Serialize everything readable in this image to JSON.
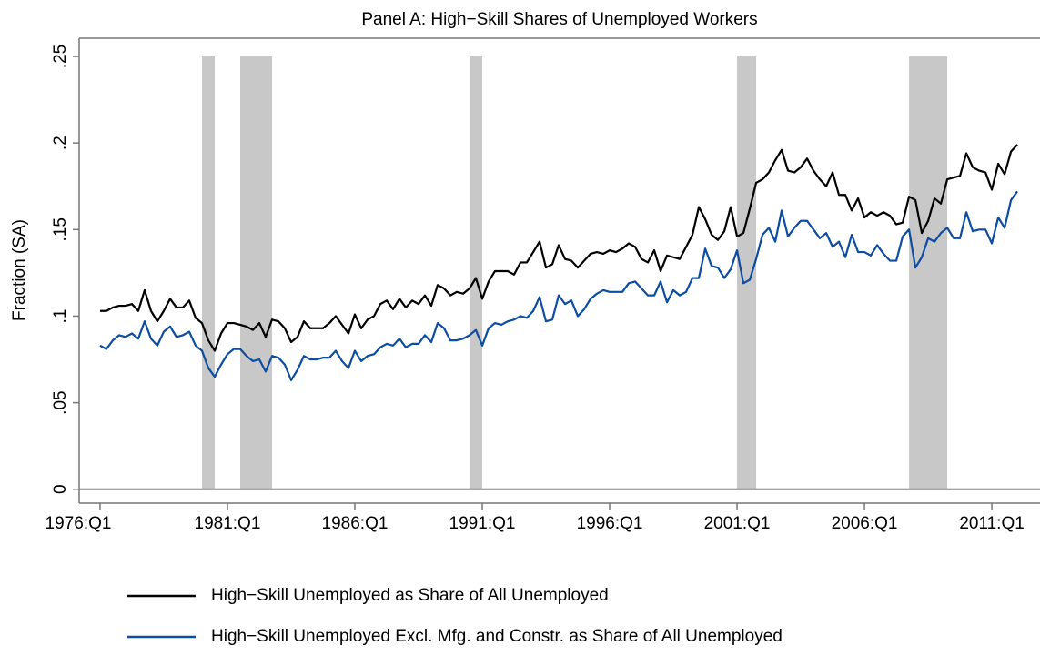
{
  "chart_data": {
    "type": "line",
    "title": "Panel A: High−Skill Shares of Unemployed Workers",
    "y_label": "Fraction (SA)",
    "x": [
      1976,
      1976.25,
      1976.5,
      1976.75,
      1977,
      1977.25,
      1977.5,
      1977.75,
      1978,
      1978.25,
      1978.5,
      1978.75,
      1979,
      1979.25,
      1979.5,
      1979.75,
      1980,
      1980.25,
      1980.5,
      1980.75,
      1981,
      1981.25,
      1981.5,
      1981.75,
      1982,
      1982.25,
      1982.5,
      1982.75,
      1983,
      1983.25,
      1983.5,
      1983.75,
      1984,
      1984.25,
      1984.5,
      1984.75,
      1985,
      1985.25,
      1985.5,
      1985.75,
      1986,
      1986.25,
      1986.5,
      1986.75,
      1987,
      1987.25,
      1987.5,
      1987.75,
      1988,
      1988.25,
      1988.5,
      1988.75,
      1989,
      1989.25,
      1989.5,
      1989.75,
      1990,
      1990.25,
      1990.5,
      1990.75,
      1991,
      1991.25,
      1991.5,
      1991.75,
      1992,
      1992.25,
      1992.5,
      1992.75,
      1993,
      1993.25,
      1993.5,
      1993.75,
      1994,
      1994.25,
      1994.5,
      1994.75,
      1995,
      1995.25,
      1995.5,
      1995.75,
      1996,
      1996.25,
      1996.5,
      1996.75,
      1997,
      1997.25,
      1997.5,
      1997.75,
      1998,
      1998.25,
      1998.5,
      1998.75,
      1999,
      1999.25,
      1999.5,
      1999.75,
      2000,
      2000.25,
      2000.5,
      2000.75,
      2001,
      2001.25,
      2001.5,
      2001.75,
      2002,
      2002.25,
      2002.5,
      2002.75,
      2003,
      2003.25,
      2003.5,
      2003.75,
      2004,
      2004.25,
      2004.5,
      2004.75,
      2005,
      2005.25,
      2005.5,
      2005.75,
      2006,
      2006.25,
      2006.5,
      2006.75,
      2007,
      2007.25,
      2007.5,
      2007.75,
      2008,
      2008.25,
      2008.5,
      2008.75,
      2009,
      2009.25,
      2009.5,
      2009.75,
      2010,
      2010.25,
      2010.5,
      2010.75,
      2011,
      2011.25,
      2011.5,
      2011.75,
      2012
    ],
    "series": [
      {
        "name": "High−Skill Unemployed as Share of All Unemployed",
        "color": "#000000",
        "values": [
          0.103,
          0.103,
          0.105,
          0.106,
          0.106,
          0.107,
          0.103,
          0.115,
          0.103,
          0.097,
          0.103,
          0.11,
          0.105,
          0.105,
          0.109,
          0.099,
          0.096,
          0.086,
          0.08,
          0.09,
          0.096,
          0.096,
          0.095,
          0.094,
          0.092,
          0.096,
          0.088,
          0.098,
          0.097,
          0.093,
          0.085,
          0.088,
          0.097,
          0.093,
          0.093,
          0.093,
          0.096,
          0.1,
          0.095,
          0.09,
          0.101,
          0.093,
          0.098,
          0.1,
          0.107,
          0.109,
          0.104,
          0.11,
          0.105,
          0.109,
          0.107,
          0.112,
          0.106,
          0.118,
          0.116,
          0.112,
          0.114,
          0.113,
          0.116,
          0.122,
          0.11,
          0.12,
          0.126,
          0.126,
          0.126,
          0.124,
          0.131,
          0.131,
          0.137,
          0.143,
          0.128,
          0.13,
          0.141,
          0.133,
          0.132,
          0.128,
          0.132,
          0.136,
          0.137,
          0.136,
          0.138,
          0.137,
          0.139,
          0.142,
          0.14,
          0.133,
          0.131,
          0.138,
          0.126,
          0.135,
          0.134,
          0.133,
          0.14,
          0.147,
          0.163,
          0.156,
          0.147,
          0.144,
          0.149,
          0.163,
          0.146,
          0.148,
          0.162,
          0.177,
          0.179,
          0.183,
          0.19,
          0.196,
          0.184,
          0.183,
          0.186,
          0.191,
          0.184,
          0.179,
          0.175,
          0.183,
          0.17,
          0.17,
          0.161,
          0.168,
          0.157,
          0.16,
          0.158,
          0.16,
          0.158,
          0.153,
          0.154,
          0.169,
          0.167,
          0.148,
          0.155,
          0.168,
          0.165,
          0.179,
          0.18,
          0.181,
          0.194,
          0.186,
          0.184,
          0.183,
          0.173,
          0.188,
          0.182,
          0.195,
          0.199
        ]
      },
      {
        "name": "High−Skill Unemployed Excl. Mfg. and Constr. as Share of All Unemployed",
        "color": "#0c4da2",
        "values": [
          0.083,
          0.081,
          0.086,
          0.089,
          0.088,
          0.09,
          0.087,
          0.097,
          0.087,
          0.083,
          0.091,
          0.094,
          0.088,
          0.089,
          0.091,
          0.083,
          0.08,
          0.07,
          0.065,
          0.072,
          0.078,
          0.081,
          0.081,
          0.077,
          0.074,
          0.075,
          0.068,
          0.077,
          0.076,
          0.072,
          0.063,
          0.069,
          0.077,
          0.075,
          0.075,
          0.076,
          0.076,
          0.08,
          0.074,
          0.07,
          0.08,
          0.074,
          0.077,
          0.078,
          0.082,
          0.084,
          0.083,
          0.087,
          0.082,
          0.084,
          0.084,
          0.089,
          0.085,
          0.096,
          0.093,
          0.086,
          0.086,
          0.087,
          0.089,
          0.092,
          0.083,
          0.093,
          0.096,
          0.095,
          0.097,
          0.098,
          0.1,
          0.099,
          0.103,
          0.111,
          0.097,
          0.098,
          0.112,
          0.107,
          0.109,
          0.1,
          0.104,
          0.11,
          0.113,
          0.115,
          0.114,
          0.114,
          0.114,
          0.119,
          0.12,
          0.116,
          0.112,
          0.112,
          0.12,
          0.108,
          0.115,
          0.112,
          0.114,
          0.122,
          0.122,
          0.139,
          0.129,
          0.128,
          0.122,
          0.127,
          0.138,
          0.119,
          0.121,
          0.133,
          0.147,
          0.151,
          0.143,
          0.161,
          0.146,
          0.151,
          0.155,
          0.155,
          0.15,
          0.145,
          0.148,
          0.14,
          0.143,
          0.134,
          0.147,
          0.137,
          0.137,
          0.135,
          0.141,
          0.136,
          0.132,
          0.132,
          0.146,
          0.15,
          0.128,
          0.134,
          0.145,
          0.143,
          0.148,
          0.151,
          0.145,
          0.145,
          0.16,
          0.149,
          0.15,
          0.15,
          0.142,
          0.157,
          0.151,
          0.167,
          0.172
        ]
      }
    ],
    "shaded_periods": [
      [
        1980,
        1980.5
      ],
      [
        1981.5,
        1982.75
      ],
      [
        1990.5,
        1991
      ],
      [
        2001,
        2001.75
      ],
      [
        2007.75,
        2009.25
      ]
    ],
    "shade_color": "#c8c8c8",
    "xlim": [
      1975.18,
      2012.89
    ],
    "xticks": [
      {
        "value": 1976,
        "label": "1976:Q1"
      },
      {
        "value": 1981,
        "label": "1981:Q1"
      },
      {
        "value": 1986,
        "label": "1986:Q1"
      },
      {
        "value": 1991,
        "label": "1991:Q1"
      },
      {
        "value": 1996,
        "label": "1996:Q1"
      },
      {
        "value": 2001,
        "label": "2001:Q1"
      },
      {
        "value": 2006,
        "label": "2006:Q1"
      },
      {
        "value": 2011,
        "label": "2011:Q1"
      }
    ],
    "ylim": [
      -0.008,
      0.2605
    ],
    "yticks": [
      0,
      {
        "value": 0.05,
        "label": ".05"
      },
      {
        "value": 0.1,
        "label": ".1"
      },
      {
        "value": 0.15,
        "label": ".15"
      },
      {
        "value": 0.2,
        "label": ".2"
      },
      {
        "value": 0.25,
        "label": ".25"
      }
    ]
  }
}
